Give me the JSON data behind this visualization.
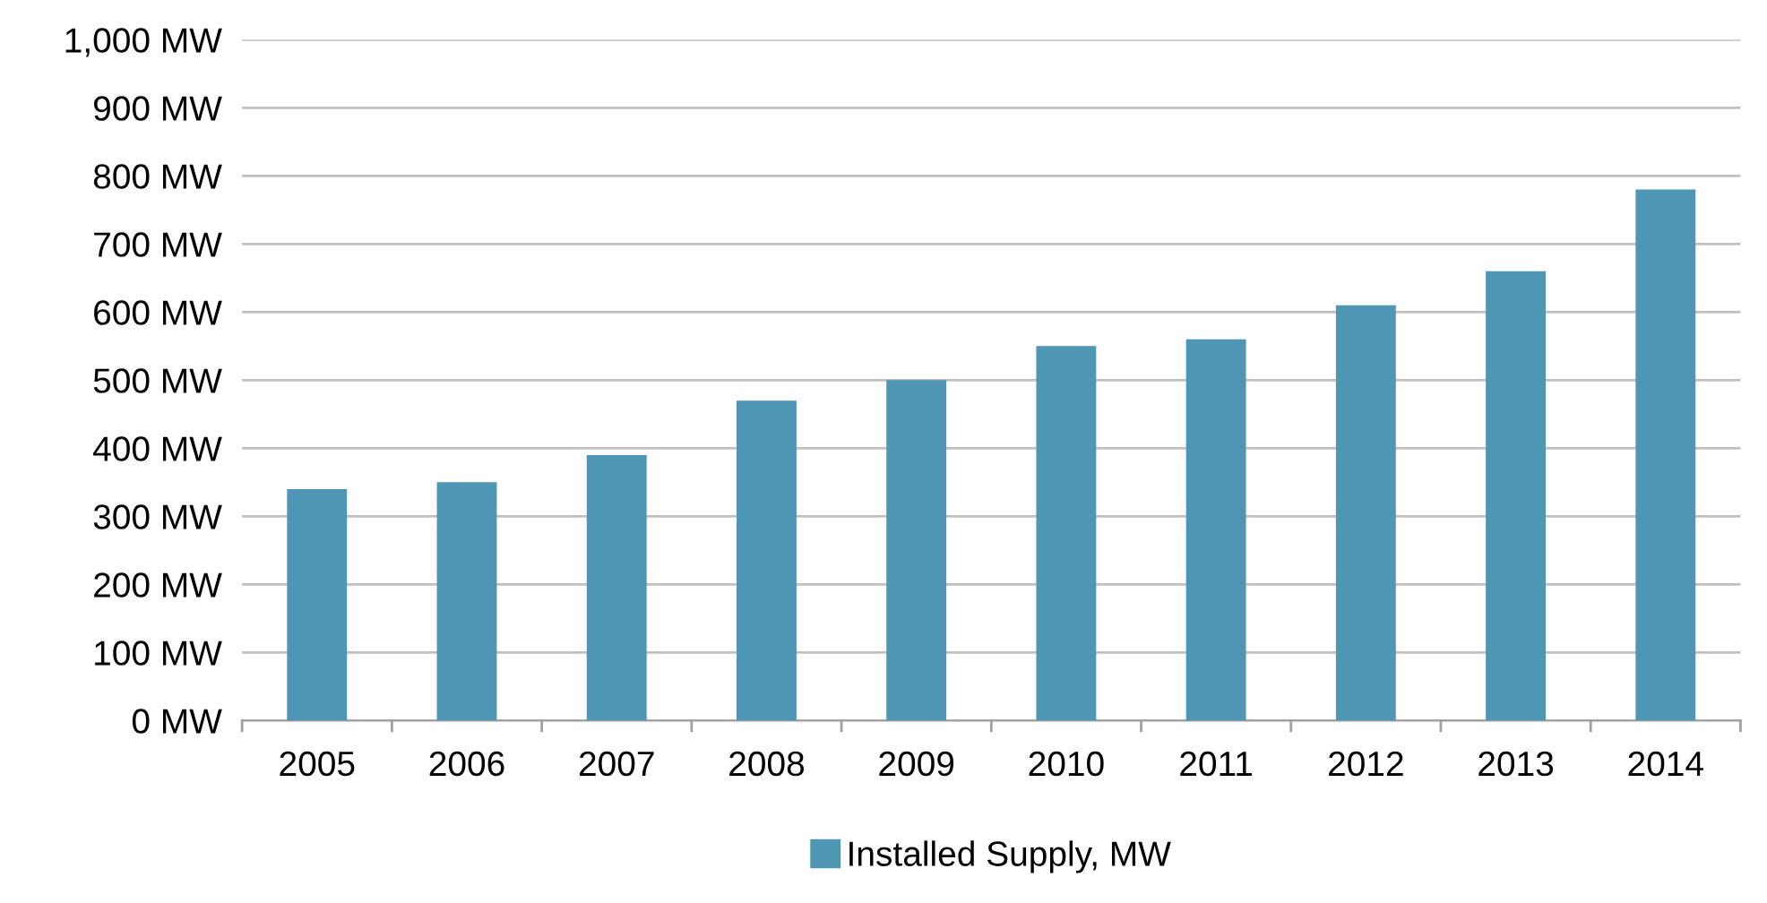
{
  "chart_data": {
    "type": "bar",
    "categories": [
      "2005",
      "2006",
      "2007",
      "2008",
      "2009",
      "2010",
      "2011",
      "2012",
      "2013",
      "2014"
    ],
    "series": [
      {
        "name": "Installed Supply, MW",
        "color": "#4f96b4",
        "values": [
          340,
          350,
          390,
          470,
          500,
          550,
          560,
          610,
          660,
          780
        ]
      }
    ],
    "ylim": [
      0,
      1000
    ],
    "yticks": [
      {
        "value": 0,
        "label": "0 MW"
      },
      {
        "value": 100,
        "label": "100 MW"
      },
      {
        "value": 200,
        "label": "200 MW"
      },
      {
        "value": 300,
        "label": "300 MW"
      },
      {
        "value": 400,
        "label": "400 MW"
      },
      {
        "value": 500,
        "label": "500 MW"
      },
      {
        "value": 600,
        "label": "600 MW"
      },
      {
        "value": 700,
        "label": "700 MW"
      },
      {
        "value": 800,
        "label": "800 MW"
      },
      {
        "value": 900,
        "label": "900 MW"
      },
      {
        "value": 1000,
        "label": "1,000 MW"
      }
    ],
    "grid": "y",
    "legend": "bottom"
  }
}
